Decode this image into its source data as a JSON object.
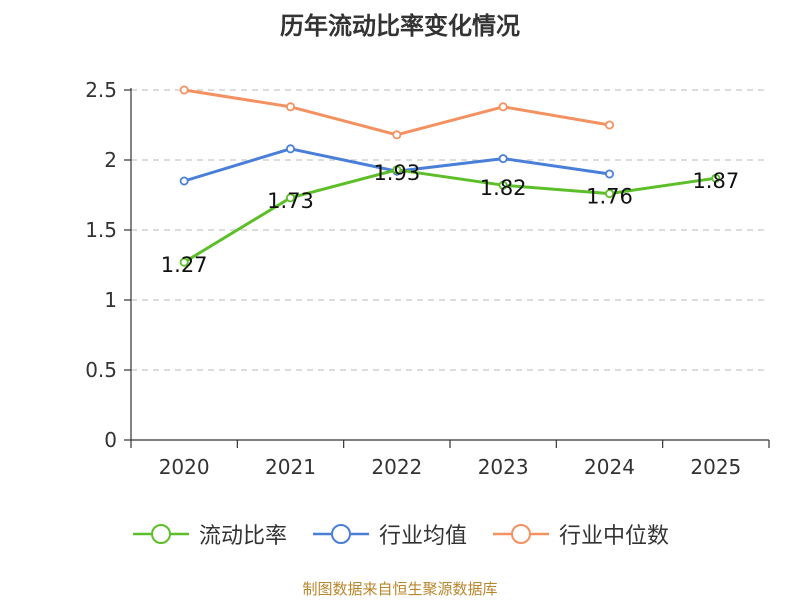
{
  "chart_data": {
    "type": "line",
    "title": "历年流动比率变化情况",
    "categories": [
      "2020",
      "2021",
      "2022",
      "2023",
      "2024",
      "2025"
    ],
    "ylim": [
      0,
      2.5
    ],
    "yticks": [
      "0",
      "0.5",
      "1",
      "1.5",
      "2",
      "2.5"
    ],
    "grid": true,
    "legend_position": "bottom",
    "series": [
      {
        "name": "流动比率",
        "color": "#5cbf2a",
        "values": [
          1.27,
          1.73,
          1.93,
          1.82,
          1.76,
          1.87
        ],
        "labels": [
          "1.27",
          "1.73",
          "1.93",
          "1.82",
          "1.76",
          "1.87"
        ],
        "show_labels": true
      },
      {
        "name": "行业均值",
        "color": "#4a7fd9",
        "values": [
          1.85,
          2.08,
          1.92,
          2.01,
          1.9,
          null
        ],
        "show_labels": false
      },
      {
        "name": "行业中位数",
        "color": "#f39161",
        "values": [
          2.5,
          2.38,
          2.18,
          2.38,
          2.25,
          null
        ],
        "show_labels": false
      }
    ],
    "source": "制图数据来自恒生聚源数据库"
  }
}
